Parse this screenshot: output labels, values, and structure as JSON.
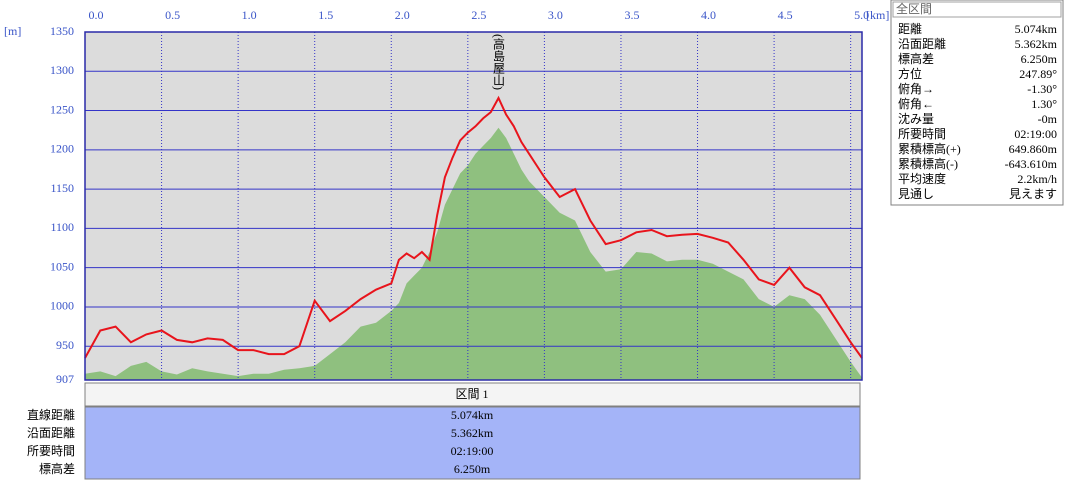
{
  "chart_data": {
    "type": "area-line",
    "xlabel": "[km]",
    "ylabel": "[m]",
    "x": [
      0,
      0.1,
      0.2,
      0.3,
      0.4,
      0.5,
      0.6,
      0.7,
      0.8,
      0.9,
      1.0,
      1.1,
      1.2,
      1.3,
      1.4,
      1.5,
      1.6,
      1.7,
      1.8,
      1.9,
      2.0,
      2.05,
      2.1,
      2.15,
      2.2,
      2.25,
      2.3,
      2.35,
      2.4,
      2.45,
      2.5,
      2.55,
      2.6,
      2.65,
      2.7,
      2.75,
      2.8,
      2.85,
      2.9,
      2.95,
      3.0,
      3.1,
      3.2,
      3.3,
      3.4,
      3.5,
      3.6,
      3.7,
      3.8,
      3.9,
      4.0,
      4.1,
      4.2,
      4.3,
      4.4,
      4.5,
      4.6,
      4.7,
      4.8,
      4.9,
      5.0,
      5.074
    ],
    "series": [
      {
        "kind": "area",
        "color": "#8fc07f",
        "values": [
          915,
          918,
          912,
          925,
          930,
          918,
          914,
          922,
          918,
          915,
          912,
          915,
          915,
          920,
          922,
          925,
          940,
          955,
          975,
          980,
          995,
          1005,
          1030,
          1040,
          1050,
          1070,
          1095,
          1130,
          1150,
          1170,
          1180,
          1195,
          1205,
          1215,
          1228,
          1215,
          1195,
          1175,
          1160,
          1150,
          1140,
          1120,
          1110,
          1070,
          1045,
          1048,
          1070,
          1068,
          1058,
          1060,
          1060,
          1055,
          1045,
          1035,
          1010,
          1000,
          1015,
          1010,
          990,
          960,
          930,
          910
        ]
      },
      {
        "kind": "line",
        "color": "#e8141c",
        "values": [
          935,
          970,
          975,
          955,
          965,
          970,
          958,
          955,
          960,
          958,
          945,
          945,
          940,
          940,
          950,
          1008,
          982,
          995,
          1010,
          1022,
          1030,
          1060,
          1068,
          1062,
          1070,
          1060,
          1117,
          1165,
          1190,
          1212,
          1222,
          1230,
          1240,
          1248,
          1266,
          1245,
          1230,
          1210,
          1195,
          1180,
          1165,
          1140,
          1150,
          1110,
          1080,
          1085,
          1095,
          1098,
          1090,
          1092,
          1093,
          1088,
          1082,
          1060,
          1035,
          1028,
          1050,
          1025,
          1015,
          985,
          955,
          935
        ]
      }
    ],
    "annotations": [
      {
        "text": "(高島屋山)",
        "x": 2.7
      }
    ],
    "xlim": [
      0,
      5.074
    ],
    "xticks": [
      {
        "value": 0,
        "label": "0.0"
      },
      0.5,
      {
        "value": 1,
        "label": "1.0"
      },
      1.5,
      {
        "value": 2,
        "label": "2.0"
      },
      2.5,
      {
        "value": 3,
        "label": "3.0"
      },
      3.5,
      {
        "value": 4,
        "label": "4.0"
      },
      4.5,
      {
        "value": 5,
        "label": "5.0"
      }
    ],
    "ylim": [
      907,
      1350
    ],
    "yticks": [
      907,
      950,
      1000,
      1050,
      1100,
      1150,
      1200,
      1250,
      1300,
      1350
    ],
    "grid": true
  },
  "summary_panel": {
    "title": "全区間",
    "rows": [
      [
        "距離",
        "5.074km"
      ],
      [
        "沿面距離",
        "5.362km"
      ],
      [
        "標高差",
        "6.250m"
      ],
      [
        "方位",
        "247.89°"
      ],
      [
        "俯角→",
        "-1.30°"
      ],
      [
        "俯角←",
        "1.30°"
      ],
      [
        "沈み量",
        "-0m"
      ],
      [
        "所要時間",
        "02:19:00"
      ],
      [
        "累積標高(+)",
        "649.860m"
      ],
      [
        "累積標高(-)",
        "-643.610m"
      ],
      [
        "平均速度",
        "2.2km/h"
      ],
      [
        "見通し",
        "見えます"
      ]
    ]
  },
  "section_table": {
    "header": "区間 1",
    "rows": [
      [
        "直線距離",
        "5.074km"
      ],
      [
        "沿面距離",
        "5.362km"
      ],
      [
        "所要時間",
        "02:19:00"
      ],
      [
        "標高差",
        "6.250m"
      ]
    ]
  }
}
